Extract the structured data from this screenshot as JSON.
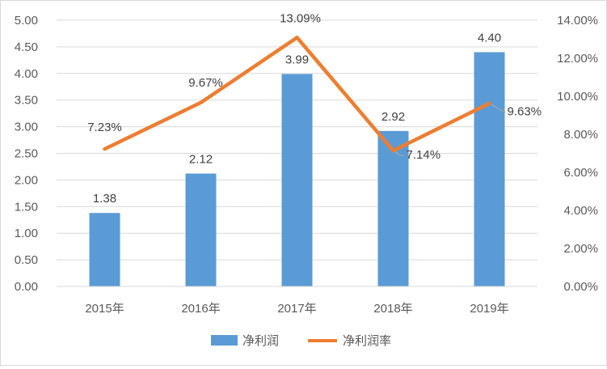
{
  "chart_data": {
    "type": "bar",
    "categories": [
      "2015年",
      "2016年",
      "2017年",
      "2018年",
      "2019年"
    ],
    "series": [
      {
        "name": "净利润",
        "type": "bar",
        "axis": "left",
        "values": [
          1.38,
          2.12,
          3.99,
          2.92,
          4.4
        ],
        "labels": [
          "1.38",
          "2.12",
          "3.99",
          "2.92",
          "4.40"
        ],
        "color": "#5b9bd5"
      },
      {
        "name": "净利润率",
        "type": "line",
        "axis": "right",
        "values": [
          7.23,
          9.67,
          13.09,
          7.14,
          9.63
        ],
        "labels": [
          "7.23%",
          "9.67%",
          "13.09%",
          "7.14%",
          "9.63%"
        ],
        "color": "#ed7d31"
      }
    ],
    "y_left": {
      "min": 0,
      "max": 5,
      "step": 0.5,
      "ticks": [
        "0.00",
        "0.50",
        "1.00",
        "1.50",
        "2.00",
        "2.50",
        "3.00",
        "3.50",
        "4.00",
        "4.50",
        "5.00"
      ]
    },
    "y_right": {
      "min": 0,
      "max": 14,
      "step": 2,
      "ticks": [
        "0.00%",
        "2.00%",
        "4.00%",
        "6.00%",
        "8.00%",
        "10.00%",
        "12.00%",
        "14.00%"
      ]
    },
    "grid": true,
    "legend_position": "bottom",
    "grid_color": "#d9d9d9",
    "leader_color": "#a6a6a6"
  }
}
